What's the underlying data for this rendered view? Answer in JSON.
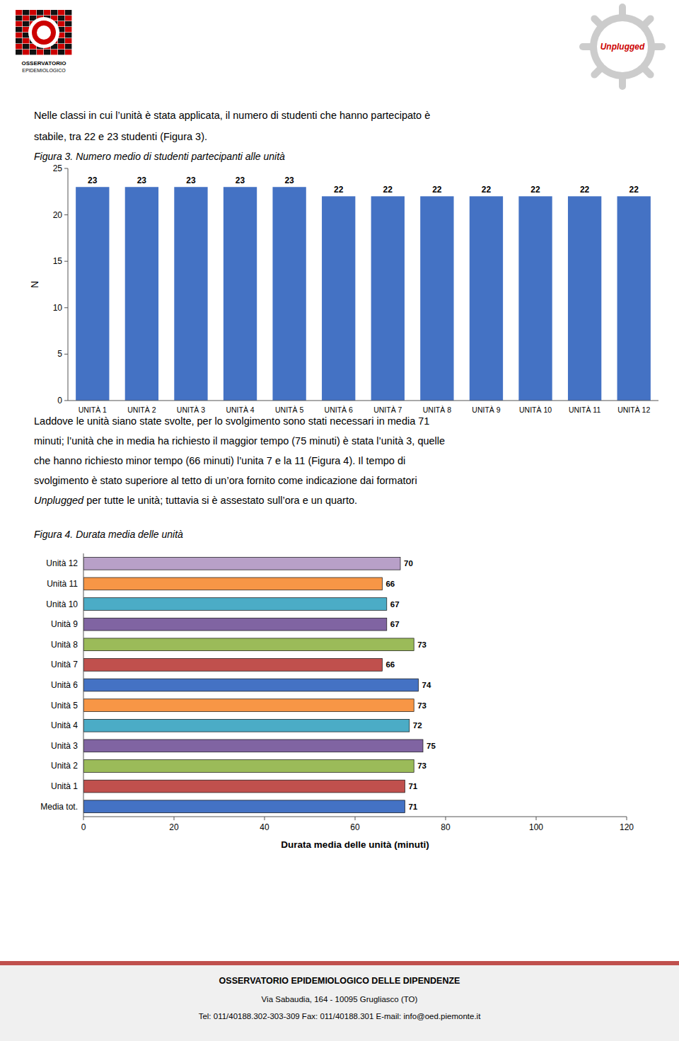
{
  "page_bg": "#ffffff",
  "logo_texts": [
    "OSSERVATORIO",
    "EPIDEMIOLOGICO",
    "Unplugged"
  ],
  "logo_colors": [
    "#cc0000",
    "#111111"
  ],
  "unplugged_color": "#cc0000",
  "header_text": [
    "Nelle classi in cui l’unità è stata applicata, il numero di studenti che hanno partecipato è",
    "stabile, tra 22 e 23 studenti (Figura 3)."
  ],
  "body_text": [
    "Laddove le unità siano state svolte, per lo svolgimento sono stati necessari in media 71",
    "minuti; l’unità che in media ha richiesto il maggior tempo (75 minuti) è stata l’unità 3, quelle",
    "che hanno richiesto minor tempo (66 minuti) l’unita 7 e la 11 (Figura 4). Il tempo di",
    "svolgimento è stato superiore al tetto di un’ora fornito come indicazione dai formatori",
    "Unplugged per tutte le unità; tuttavia si è assestato sull’ora e un quarto."
  ],
  "footer_text": [
    "OSSERVATORIO EPIDEMIOLOGICO DELLE DIPENDENZE",
    "Via Sabaudia, 164 - 10095 Grugliasco (TO)",
    "Tel: 011/40188.302-303-309 Fax: 011/40188.301 E-mail: info@oed.piemonte.it"
  ],
  "footer_line_color": "#c0504d",
  "footer_bg": "#f0f0f0",
  "chart_data": [
    {
      "type": "bar",
      "title": "Figura 3. Numero medio di studenti partecipanti alle unità",
      "categories": [
        "UNITÀ 1",
        "UNITÀ 2",
        "UNITÀ 3",
        "UNITÀ 4",
        "UNITÀ 5",
        "UNITÀ 6",
        "UNITÀ 7",
        "UNITÀ 8",
        "UNITÀ 9",
        "UNITÀ 10",
        "UNITÀ 11",
        "UNITÀ 12"
      ],
      "values": [
        23,
        23,
        23,
        23,
        23,
        22,
        22,
        22,
        22,
        22,
        22,
        22
      ],
      "color": "#4472c4",
      "ylabel": "N",
      "ylim": [
        0,
        25
      ],
      "yticks": [
        0,
        5,
        10,
        15,
        20,
        25
      ],
      "data_labels": true
    },
    {
      "type": "bar",
      "orientation": "horizontal",
      "title": "Figura 4. Durata media delle unità",
      "categories": [
        "Media tot.",
        "Unità 1",
        "Unità 2",
        "Unità 3",
        "Unità 4",
        "Unità 5",
        "Unità 6",
        "Unità 7",
        "Unità 8",
        "Unità 9",
        "Unità 10",
        "Unità 11",
        "Unità 12"
      ],
      "values": [
        71,
        71,
        73,
        75,
        72,
        73,
        74,
        66,
        73,
        67,
        67,
        66,
        70
      ],
      "colors": [
        "#4472c4",
        "#c0504d",
        "#9bbb59",
        "#8064a2",
        "#4bacc6",
        "#f79646",
        "#4472c4",
        "#c0504d",
        "#9bbb59",
        "#8064a2",
        "#4bacc6",
        "#f79646",
        "#b8a0c8"
      ],
      "xlabel": "Durata media delle unità (minuti)",
      "xlim": [
        0,
        120
      ],
      "xticks": [
        0,
        20,
        40,
        60,
        80,
        100,
        120
      ],
      "data_labels": true
    }
  ]
}
